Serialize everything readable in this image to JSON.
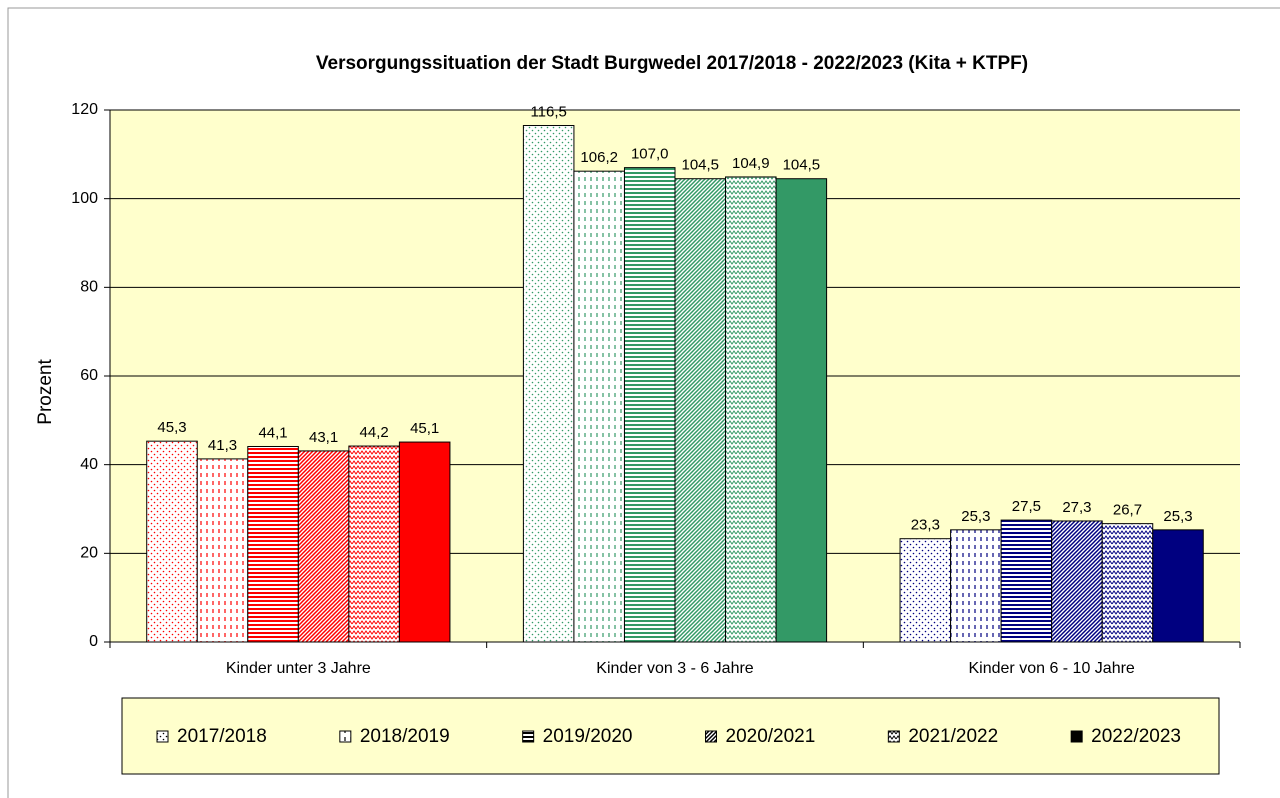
{
  "chart_data": {
    "type": "bar",
    "title": "Versorgungssituation der Stadt Burgwedel 2017/2018  - 2022/2023 (Kita + KTPF)",
    "y_label": "Prozent",
    "categories": [
      "Kinder unter 3 Jahre",
      "Kinder von 3 - 6 Jahre",
      "Kinder von 6 - 10 Jahre"
    ],
    "category_colors": [
      "#ff0000",
      "#339966",
      "#000080"
    ],
    "series": [
      {
        "name": "2017/2018",
        "color": "#000000",
        "pattern": "dots",
        "values": [
          45.3,
          116.5,
          23.3
        ],
        "value_labels": [
          "45,3",
          "116,5",
          "23,3"
        ]
      },
      {
        "name": "2018/2019",
        "color": "#000000",
        "pattern": "dashes",
        "values": [
          41.3,
          106.2,
          25.3
        ],
        "value_labels": [
          "41,3",
          "106,2",
          "25,3"
        ]
      },
      {
        "name": "2019/2020",
        "color": "#000000",
        "pattern": "hlines",
        "values": [
          44.1,
          107.0,
          27.5
        ],
        "value_labels": [
          "44,1",
          "107,0",
          "27,5"
        ]
      },
      {
        "name": "2020/2021",
        "color": "#000000",
        "pattern": "diag",
        "values": [
          43.1,
          104.5,
          27.3
        ],
        "value_labels": [
          "43,1",
          "104,5",
          "27,3"
        ]
      },
      {
        "name": "2021/2022",
        "color": "#000000",
        "pattern": "wave",
        "values": [
          44.2,
          104.9,
          26.7
        ],
        "value_labels": [
          "44,2",
          "104,9",
          "26,7"
        ]
      },
      {
        "name": "2022/2023",
        "color": "#000000",
        "pattern": "solid",
        "values": [
          45.1,
          104.5,
          25.3
        ],
        "value_labels": [
          "45,1",
          "104,5",
          "25,3"
        ]
      }
    ],
    "ylim": [
      0,
      120
    ],
    "yticks": [
      0,
      20,
      40,
      60,
      80,
      100,
      120
    ],
    "grid": true,
    "legend": "bottom"
  }
}
